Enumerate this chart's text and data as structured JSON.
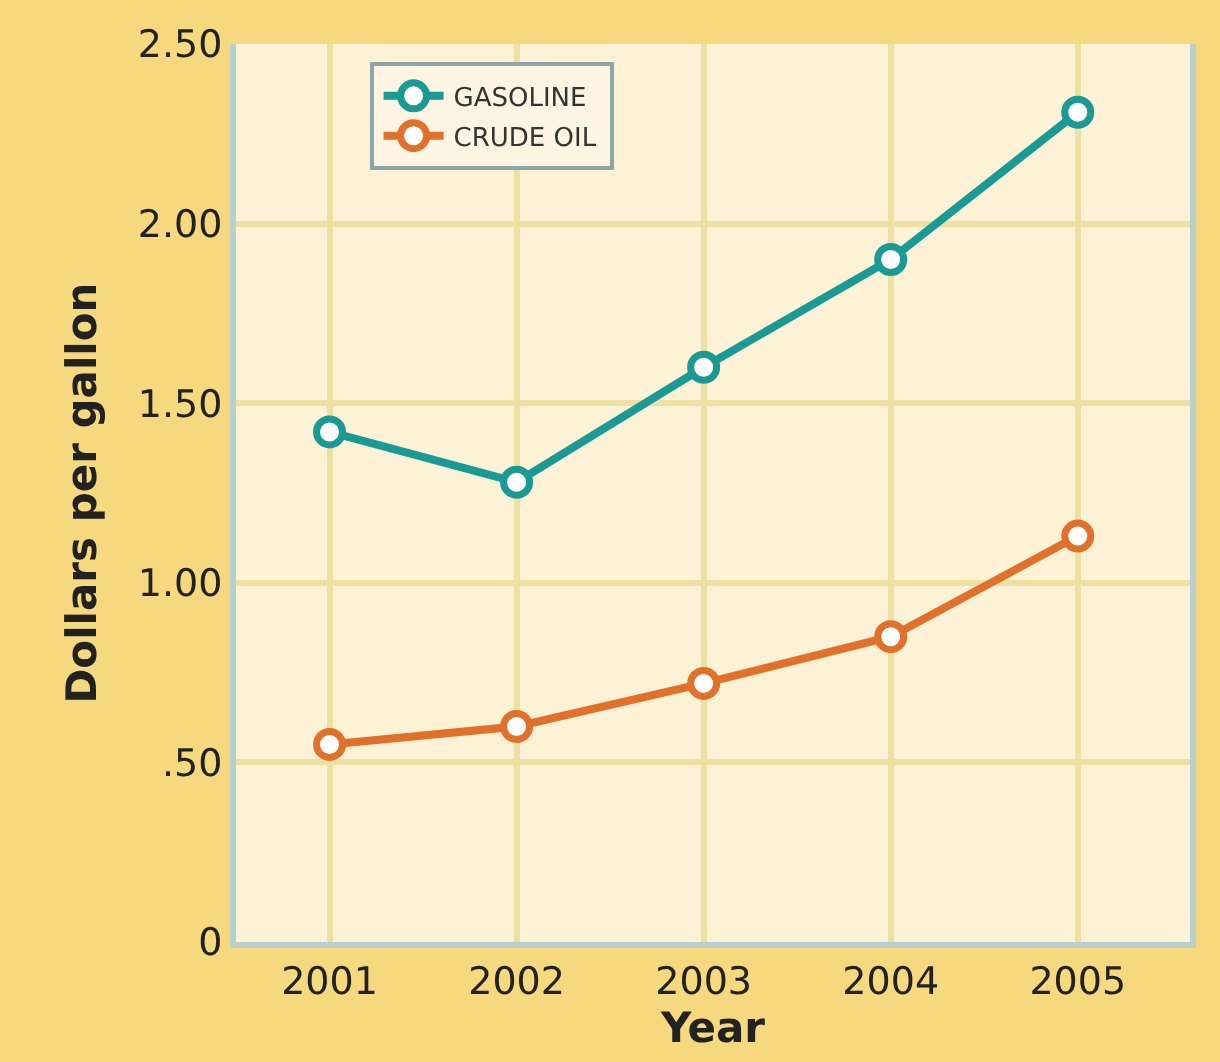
{
  "chart_data": {
    "type": "line",
    "xlabel": "Year",
    "ylabel": "Dollars per gallon",
    "categories": [
      "2001",
      "2002",
      "2003",
      "2004",
      "2005"
    ],
    "series": [
      {
        "name": "GASOLINE",
        "color": "#1a9a94",
        "values": [
          1.42,
          1.28,
          1.6,
          1.9,
          2.31
        ]
      },
      {
        "name": "CRUDE OIL",
        "color": "#e0702a",
        "values": [
          0.55,
          0.6,
          0.72,
          0.85,
          1.13
        ]
      }
    ],
    "ylim": [
      0,
      2.5
    ],
    "yticks": [
      0,
      {
        "value": 0.5,
        "label": ".50"
      },
      {
        "value": 1.0,
        "label": "1.00"
      },
      {
        "value": 1.5,
        "label": "1.50"
      },
      {
        "value": 2.0,
        "label": "2.00"
      },
      {
        "value": 2.5,
        "label": "2.50"
      }
    ],
    "grid": true,
    "legend": "top left",
    "marker": "circle",
    "line_style": "solid"
  }
}
